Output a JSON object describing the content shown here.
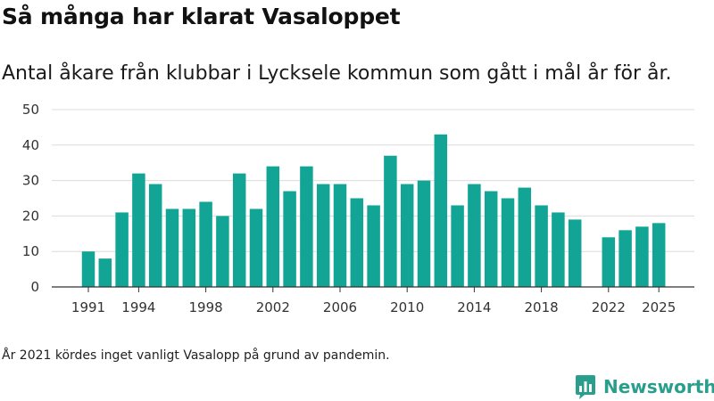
{
  "title": "Så många har klarat Vasaloppet",
  "subtitle": "Antal åkare från klubbar i Lycksele kommun som gått i mål år för år.",
  "footnote": "År 2021 kördes inget vanligt Vasalopp på grund av pandemin.",
  "brand": {
    "name": "Newsworthy",
    "icon": "bar-chart-logo-icon"
  },
  "colors": {
    "bar": "#12a596",
    "grid": "#dcdcdc",
    "axis": "#333333",
    "brand": "#2a9e8c"
  },
  "chart_data": {
    "type": "bar",
    "title": "Så många har klarat Vasaloppet",
    "subtitle": "Antal åkare från klubbar i Lycksele kommun som gått i mål år för år.",
    "xlabel": "",
    "ylabel": "",
    "ylim": [
      0,
      50
    ],
    "yticks": [
      0,
      10,
      20,
      30,
      40,
      50
    ],
    "grid": true,
    "categories": [
      1991,
      1992,
      1993,
      1994,
      1995,
      1996,
      1997,
      1998,
      1999,
      2000,
      2001,
      2002,
      2003,
      2004,
      2005,
      2006,
      2007,
      2008,
      2009,
      2010,
      2011,
      2012,
      2013,
      2014,
      2015,
      2016,
      2017,
      2018,
      2019,
      2020,
      2021,
      2022,
      2023,
      2024,
      2025
    ],
    "values": [
      10,
      8,
      21,
      32,
      29,
      22,
      22,
      24,
      20,
      32,
      22,
      34,
      27,
      34,
      29,
      29,
      25,
      23,
      37,
      29,
      30,
      43,
      23,
      29,
      27,
      25,
      28,
      23,
      21,
      19,
      null,
      14,
      16,
      17,
      18
    ],
    "xtick_labels": [
      "1991",
      "1994",
      "1998",
      "2002",
      "2006",
      "2010",
      "2014",
      "2018",
      "2022",
      "2025"
    ]
  }
}
